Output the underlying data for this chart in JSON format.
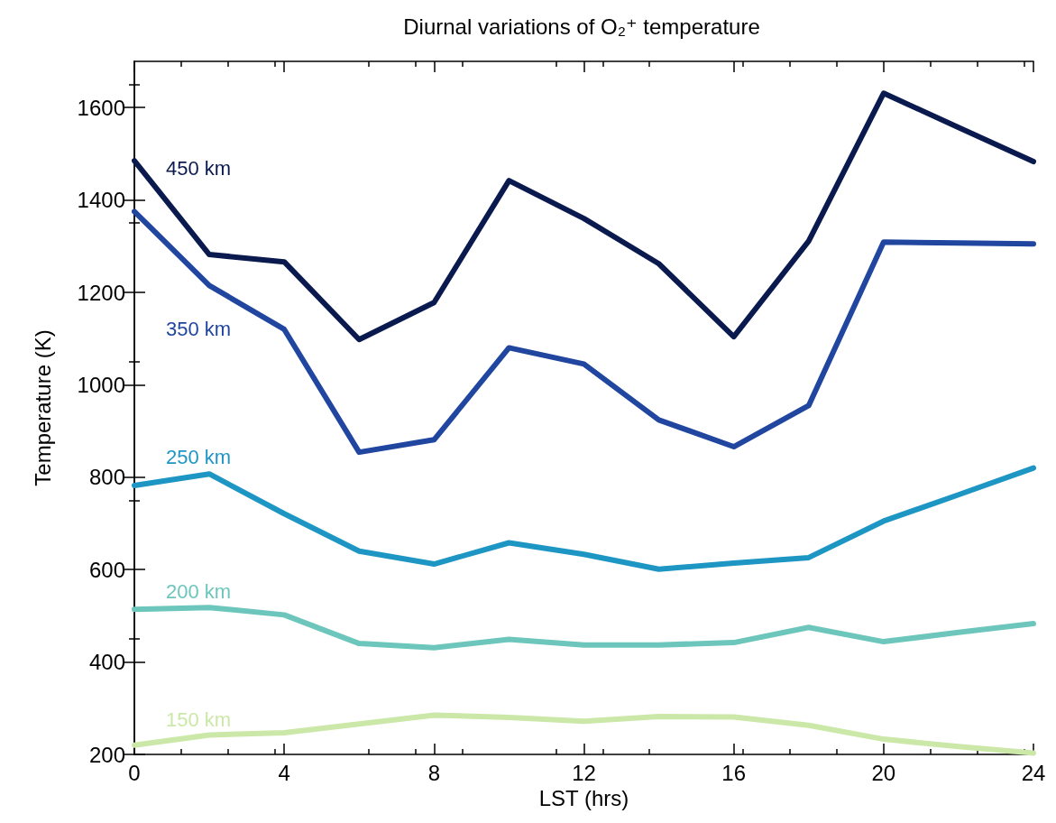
{
  "chart_data": {
    "type": "line",
    "title": "Diurnal variations of O₂⁺ temperature",
    "xlabel": "LST (hrs)",
    "ylabel": "Temperature (K)",
    "x": [
      0,
      2,
      4,
      6,
      8,
      10,
      12,
      14,
      16,
      18,
      20,
      22,
      24
    ],
    "xlim": [
      0,
      24
    ],
    "xticks": [
      0,
      4,
      8,
      12,
      16,
      20,
      24
    ],
    "ylim": [
      200,
      1700
    ],
    "yticks": [
      200,
      400,
      600,
      800,
      1000,
      1200,
      1400,
      1600
    ],
    "grid": false,
    "legend": false,
    "marker": "none",
    "line_style": "solid",
    "series": [
      {
        "name": "450 km",
        "color": "#0a1a4e",
        "values": [
          1485,
          1282,
          1266,
          1098,
          1178,
          1442,
          1360,
          1262,
          1104,
          1311,
          1631,
          1557,
          1483
        ]
      },
      {
        "name": "350 km",
        "color": "#2046a0",
        "values": [
          1375,
          1215,
          1120,
          854,
          881,
          1080,
          1045,
          924,
          866,
          955,
          1309,
          1307,
          1305
        ]
      },
      {
        "name": "250 km",
        "color": "#1e96c4",
        "values": [
          782,
          807,
          721,
          640,
          612,
          658,
          633,
          601,
          614,
          626,
          705,
          762,
          820
        ]
      },
      {
        "name": "200 km",
        "color": "#6cc6bc",
        "values": [
          514,
          518,
          502,
          440,
          431,
          449,
          437,
          437,
          442,
          475,
          444,
          464,
          483
        ]
      },
      {
        "name": "150 km",
        "color": "#cbe8a8",
        "values": [
          220,
          242,
          247,
          266,
          285,
          280,
          272,
          282,
          281,
          263,
          233,
          217,
          203
        ]
      }
    ]
  }
}
